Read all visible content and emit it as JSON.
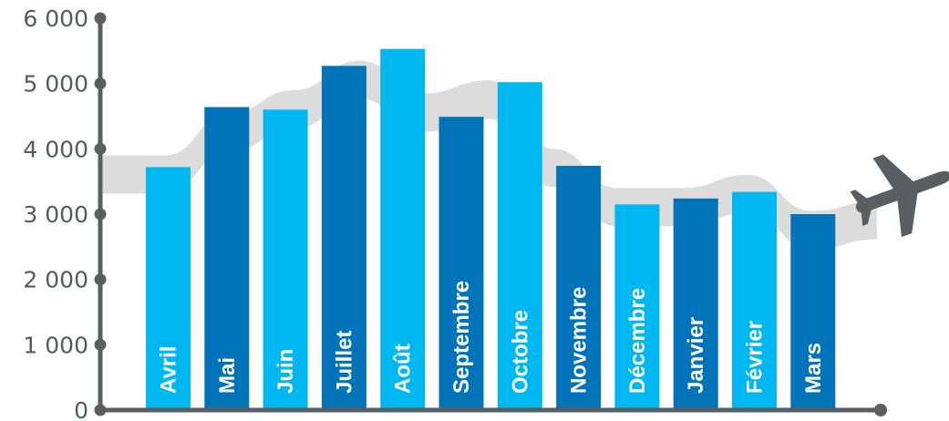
{
  "chart_data": {
    "type": "bar",
    "title": "",
    "xlabel": "",
    "ylabel": "",
    "ylim": [
      0,
      6000
    ],
    "y_ticks": [
      {
        "value": 0,
        "label": "0"
      },
      {
        "value": 1000,
        "label": "1 000"
      },
      {
        "value": 2000,
        "label": "2 000"
      },
      {
        "value": 3000,
        "label": "3 000"
      },
      {
        "value": 4000,
        "label": "4 000"
      },
      {
        "value": 5000,
        "label": "5 000"
      },
      {
        "value": 6000,
        "label": "6 000"
      }
    ],
    "categories": [
      "Avril",
      "Mai",
      "Juin",
      "Juillet",
      "Août",
      "Septembre",
      "Octobre",
      "Novembre",
      "Décembre",
      "Janvier",
      "Février",
      "Mars"
    ],
    "values": [
      3720,
      4640,
      4600,
      5270,
      5530,
      4490,
      5020,
      3740,
      3150,
      3240,
      3340,
      3000
    ],
    "grid": false,
    "legend": "none",
    "background_trend": [
      3900,
      3900,
      4550,
      4900,
      5350,
      4850,
      5050,
      4000,
      3400,
      3400,
      3600,
      3050,
      3200
    ],
    "colors": {
      "bar_light": "#00b8f1",
      "bar_dark": "#0073b9",
      "axis": "#5a5e62",
      "trend": "#dcdcdc",
      "airplane": "#5a5e62"
    }
  }
}
